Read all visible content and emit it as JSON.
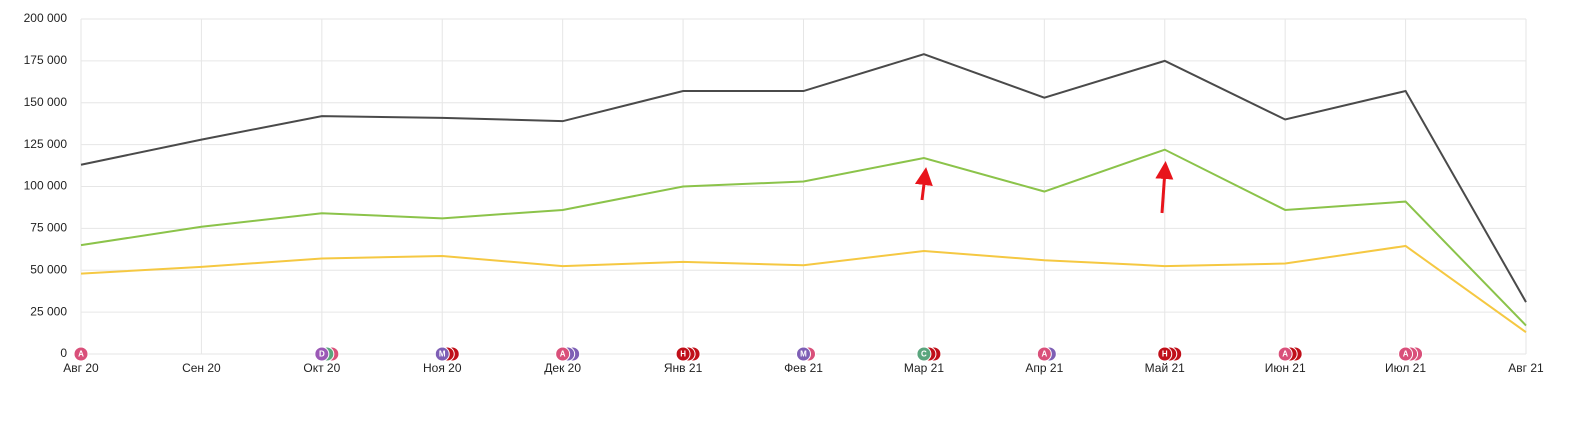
{
  "chart_data": {
    "type": "line",
    "categories": [
      "Авг 20",
      "Сен 20",
      "Окт 20",
      "Ноя 20",
      "Дек 20",
      "Янв 21",
      "Фев 21",
      "Мар 21",
      "Апр 21",
      "Май 21",
      "Июн 21",
      "Июл 21",
      "Авг 21"
    ],
    "series": [
      {
        "color": "#4a4a4a",
        "values": [
          113000,
          128000,
          142000,
          141000,
          139000,
          157000,
          157000,
          179000,
          153000,
          175000,
          140000,
          157000,
          31000
        ]
      },
      {
        "color": "#8bc34a",
        "values": [
          65000,
          76000,
          84000,
          81000,
          86000,
          100000,
          103000,
          117000,
          97000,
          122000,
          86000,
          91000,
          17000
        ]
      },
      {
        "color": "#f5c842",
        "values": [
          48000,
          52000,
          57000,
          58500,
          52500,
          55000,
          53000,
          61500,
          56000,
          52500,
          54000,
          64500,
          13000
        ]
      }
    ],
    "ylim": [
      0,
      200000
    ],
    "yticks": [
      0,
      {
        "value": 25000,
        "label": "25 000"
      },
      {
        "value": 50000,
        "label": "50 000"
      },
      {
        "value": 75000,
        "label": "75 000"
      },
      {
        "value": 100000,
        "label": "100 000"
      },
      {
        "value": 125000,
        "label": "125 000"
      },
      {
        "value": 150000,
        "label": "150 000"
      },
      {
        "value": 175000,
        "label": "175 000"
      },
      {
        "value": 200000,
        "label": "200 000"
      }
    ],
    "grid": true,
    "markers": [
      {
        "x": "Авг 20",
        "label": "A",
        "colors": [
          "#d9507a"
        ]
      },
      {
        "x": "Окт 20",
        "label": "D",
        "colors": [
          "#9b59b6",
          "#5aa57d",
          "#d9507a"
        ]
      },
      {
        "x": "Ноя 20",
        "label": "M",
        "colors": [
          "#7e5fb5",
          "#c0101a",
          "#c0101a"
        ]
      },
      {
        "x": "Дек 20",
        "label": "A",
        "colors": [
          "#d9507a",
          "#7e5fb5",
          "#7e5fb5"
        ]
      },
      {
        "x": "Янв 21",
        "label": "H",
        "colors": [
          "#c0101a",
          "#c0101a",
          "#c0101a"
        ]
      },
      {
        "x": "Фев 21",
        "label": "M",
        "colors": [
          "#7e5fb5",
          "#d9507a"
        ]
      },
      {
        "x": "Мар 21",
        "label": "C",
        "colors": [
          "#5aa57d",
          "#c0101a",
          "#c0101a"
        ]
      },
      {
        "x": "Апр 21",
        "label": "A",
        "colors": [
          "#d9507a",
          "#7e5fb5"
        ]
      },
      {
        "x": "Май 21",
        "label": "H",
        "colors": [
          "#c0101a",
          "#c0101a",
          "#c0101a"
        ]
      },
      {
        "x": "Июн 21",
        "label": "A",
        "colors": [
          "#d9507a",
          "#c0101a",
          "#c0101a"
        ]
      },
      {
        "x": "Июл 21",
        "label": "A",
        "colors": [
          "#d9507a",
          "#d9507a",
          "#d9507a"
        ]
      }
    ]
  }
}
